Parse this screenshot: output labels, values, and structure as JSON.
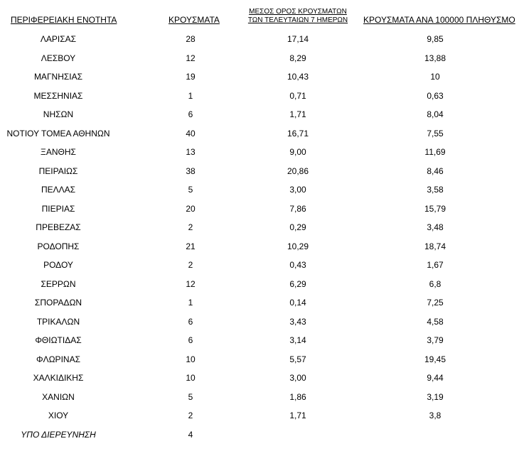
{
  "table": {
    "header": [
      "ΠΕΡΙΦΕΡΕΙΑΚΗ ΕΝΟΤΗΤΑ",
      "ΚΡΟΥΣΜΑΤΑ",
      "ΜΕΣΟΣ ΟΡΟΣ ΚΡΟΥΣΜΑΤΩΝ ΤΩΝ ΤΕΛΕΥΤΑΙΩΝ 7 ΗΜΕΡΩΝ",
      "ΚΡΟΥΣΜΑΤΑ ΑΝΑ 100000 ΠΛΗΘΥΣΜΟ"
    ],
    "rows": [
      [
        "ΛΑΡΙΣΑΣ",
        "28",
        "17,14",
        "9,85"
      ],
      [
        "ΛΕΣΒΟΥ",
        "12",
        "8,29",
        "13,88"
      ],
      [
        "ΜΑΓΝΗΣΙΑΣ",
        "19",
        "10,43",
        "10"
      ],
      [
        "ΜΕΣΣΗΝΙΑΣ",
        "1",
        "0,71",
        "0,63"
      ],
      [
        "ΝΗΣΩΝ",
        "6",
        "1,71",
        "8,04"
      ],
      [
        "ΝΟΤΙΟΥ ΤΟΜΕΑ ΑΘΗΝΩΝ",
        "40",
        "16,71",
        "7,55"
      ],
      [
        "ΞΑΝΘΗΣ",
        "13",
        "9,00",
        "11,69"
      ],
      [
        "ΠΕΙΡΑΙΩΣ",
        "38",
        "20,86",
        "8,46"
      ],
      [
        "ΠΕΛΛΑΣ",
        "5",
        "3,00",
        "3,58"
      ],
      [
        "ΠΙΕΡΙΑΣ",
        "20",
        "7,86",
        "15,79"
      ],
      [
        "ΠΡΕΒΕΖΑΣ",
        "2",
        "0,29",
        "3,48"
      ],
      [
        "ΡΟΔΟΠΗΣ",
        "21",
        "10,29",
        "18,74"
      ],
      [
        "ΡΟΔΟΥ",
        "2",
        "0,43",
        "1,67"
      ],
      [
        "ΣΕΡΡΩΝ",
        "12",
        "6,29",
        "6,8"
      ],
      [
        "ΣΠΟΡΑΔΩΝ",
        "1",
        "0,14",
        "7,25"
      ],
      [
        "ΤΡΙΚΑΛΩΝ",
        "6",
        "3,43",
        "4,58"
      ],
      [
        "ΦΘΙΩΤΙΔΑΣ",
        "6",
        "3,14",
        "3,79"
      ],
      [
        "ΦΛΩΡΙΝΑΣ",
        "10",
        "5,57",
        "19,45"
      ],
      [
        "ΧΑΛΚΙΔΙΚΗΣ",
        "10",
        "3,00",
        "9,44"
      ],
      [
        "ΧΑΝΙΩΝ",
        "5",
        "1,86",
        "3,19"
      ],
      [
        "ΧΙΟΥ",
        "2",
        "1,71",
        "3,8"
      ],
      [
        "ΥΠΟ ΔΙΕΡΕΥΝΗΣΗ",
        "4"
      ]
    ]
  }
}
